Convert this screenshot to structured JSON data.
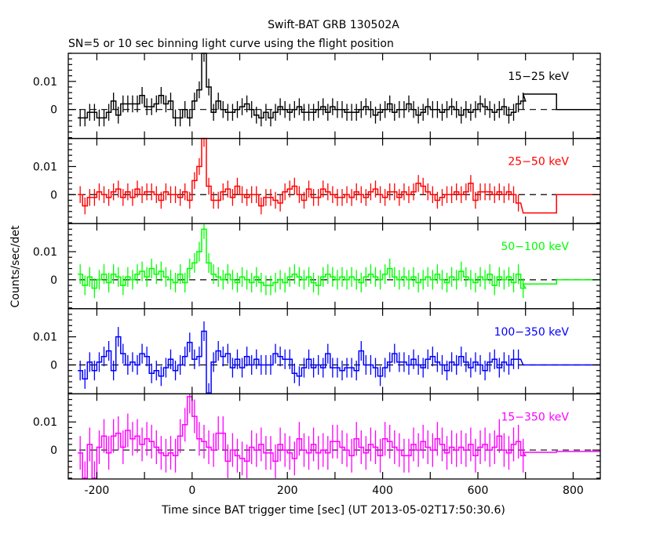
{
  "chart_data": {
    "type": "line",
    "title": "Swift-BAT GRB 130502A",
    "subtitle": "SN=5 or 10 sec binning light curve using the flight position",
    "xlabel": "Time since BAT trigger time [sec] (UT 2013-05-02T17:50:30.6)",
    "ylabel": "Counts/sec/det",
    "xlim": [
      -260,
      857
    ],
    "ylim": [
      -0.0103,
      0.02
    ],
    "x_ticks": [
      -200,
      0,
      200,
      400,
      600,
      800
    ],
    "y_ticks": [
      0,
      0.01
    ],
    "y_tick_labels": [
      "0",
      "0.01"
    ],
    "x_start": -240,
    "bin_width": 10,
    "panels": [
      {
        "name": "15−25 keV",
        "color": "#000000",
        "error": 0.003,
        "values": [
          -0.003,
          -0.003,
          -0.001,
          -0.001,
          -0.003,
          -0.003,
          -0.001,
          0.003,
          -0.002,
          0.002,
          0.002,
          0.002,
          0.002,
          0.005,
          0.001,
          0.001,
          0.002,
          0.005,
          0.002,
          0.003,
          -0.003,
          -0.003,
          0.0,
          -0.003,
          0.003,
          0.007,
          0.02,
          0.008,
          -0.001,
          0.003,
          0.0,
          -0.001,
          -0.001,
          0.0,
          0.001,
          0.002,
          0.0,
          -0.002,
          -0.003,
          -0.001,
          -0.003,
          -0.001,
          0.001,
          0.0,
          -0.001,
          0.0,
          0.001,
          -0.001,
          -0.001,
          -0.001,
          0.0,
          0.001,
          -0.001,
          0.001,
          0.0,
          0.0,
          -0.001,
          -0.001,
          -0.001,
          0.0,
          0.001,
          0.0,
          -0.002,
          -0.001,
          0.0,
          0.002,
          -0.001,
          0.0,
          0.0,
          0.002,
          0.0,
          -0.002,
          -0.001,
          0.001,
          0.0,
          0.0,
          -0.001,
          0.0,
          0.001,
          0.0,
          -0.002,
          0.0,
          -0.001,
          0.0,
          0.002,
          0.001,
          0.0,
          -0.001,
          0.0,
          0.001,
          -0.002,
          -0.001,
          0.002,
          0.003
        ],
        "tail": [
          {
            "from": 695,
            "to": 765,
            "value": 0.0055
          },
          {
            "from": 765,
            "to": 857,
            "value": 0.0
          }
        ]
      },
      {
        "name": "25−50 keV",
        "color": "#ff0000",
        "error": 0.003,
        "values": [
          0.0,
          -0.004,
          -0.001,
          -0.001,
          0.001,
          0.0,
          -0.001,
          0.001,
          0.002,
          -0.001,
          0.001,
          -0.001,
          0.002,
          0.0,
          0.001,
          0.001,
          0.0,
          -0.002,
          0.001,
          0.0,
          0.0,
          -0.001,
          0.001,
          -0.002,
          0.005,
          0.01,
          0.02,
          0.003,
          -0.002,
          -0.002,
          0.001,
          0.002,
          -0.001,
          0.003,
          0.0,
          -0.001,
          0.0,
          0.0,
          -0.004,
          -0.001,
          -0.001,
          -0.002,
          -0.003,
          0.001,
          0.002,
          0.003,
          0.0,
          -0.002,
          0.002,
          -0.001,
          -0.001,
          0.002,
          0.001,
          0.0,
          -0.001,
          -0.001,
          0.0,
          -0.001,
          0.001,
          0.0,
          -0.001,
          0.001,
          0.002,
          0.0,
          -0.001,
          0.001,
          0.001,
          -0.001,
          0.001,
          0.0,
          0.001,
          0.004,
          0.003,
          0.001,
          0.0,
          -0.002,
          -0.001,
          0.0,
          0.0,
          0.001,
          0.0,
          0.001,
          0.004,
          -0.002,
          0.001,
          0.001,
          0.001,
          0.0,
          0.001,
          0.0,
          0.001,
          0.0,
          -0.003
        ],
        "tail": [
          {
            "from": 695,
            "to": 765,
            "value": -0.0065
          },
          {
            "from": 765,
            "to": 857,
            "value": 0.0
          }
        ]
      },
      {
        "name": "50−100 keV",
        "color": "#00ff00",
        "error": 0.0035,
        "values": [
          0.002,
          -0.002,
          0.001,
          -0.003,
          0.0,
          0.002,
          -0.001,
          0.002,
          0.001,
          -0.002,
          0.001,
          0.0,
          0.002,
          0.003,
          0.001,
          0.004,
          0.002,
          0.003,
          0.001,
          0.0,
          -0.001,
          0.002,
          -0.001,
          0.004,
          0.006,
          0.01,
          0.018,
          0.006,
          0.002,
          0.001,
          0.0,
          0.002,
          0.0,
          -0.001,
          0.001,
          0.0,
          -0.001,
          0.001,
          -0.001,
          -0.002,
          -0.002,
          -0.001,
          0.0,
          -0.001,
          0.001,
          0.002,
          0.001,
          0.0,
          0.001,
          -0.001,
          -0.002,
          0.001,
          0.002,
          0.001,
          0.0,
          0.001,
          0.0,
          0.001,
          0.0,
          -0.001,
          0.001,
          0.002,
          0.001,
          0.0,
          0.002,
          0.004,
          0.001,
          0.0,
          0.001,
          0.0,
          0.001,
          -0.001,
          0.0,
          0.001,
          0.0,
          0.002,
          0.0,
          -0.001,
          0.001,
          0.0,
          0.003,
          0.001,
          0.0,
          -0.001,
          0.001,
          0.0,
          0.002,
          -0.002,
          0.001,
          0.0,
          0.001,
          -0.001,
          0.002,
          -0.003
        ],
        "tail": [
          {
            "from": 695,
            "to": 765,
            "value": -0.0015
          },
          {
            "from": 765,
            "to": 857,
            "value": 0.0
          }
        ]
      },
      {
        "name": "100−350 keV",
        "color": "#0000ff",
        "error": 0.0035,
        "values": [
          -0.002,
          -0.005,
          0.001,
          -0.002,
          0.001,
          0.003,
          0.005,
          -0.002,
          0.01,
          0.004,
          0.0,
          0.001,
          0.0,
          0.004,
          0.003,
          -0.003,
          -0.002,
          -0.004,
          -0.001,
          0.002,
          -0.002,
          0.0,
          0.003,
          0.008,
          0.002,
          0.003,
          0.012,
          -0.01,
          0.001,
          0.005,
          0.003,
          0.004,
          -0.001,
          0.002,
          -0.001,
          0.003,
          0.0,
          0.002,
          0.0,
          0.0,
          0.0,
          0.004,
          0.003,
          0.002,
          0.002,
          -0.003,
          -0.004,
          -0.001,
          0.002,
          -0.001,
          0.0,
          -0.001,
          0.004,
          -0.001,
          -0.001,
          -0.002,
          -0.001,
          -0.001,
          -0.002,
          0.005,
          0.0,
          0.0,
          -0.001,
          -0.004,
          -0.001,
          0.001,
          0.004,
          0.001,
          0.001,
          0.0,
          0.002,
          0.0,
          -0.001,
          0.002,
          0.003,
          0.001,
          0.0,
          -0.002,
          0.001,
          0.0,
          0.003,
          0.001,
          -0.001,
          0.001,
          0.0,
          -0.002,
          0.001,
          0.002,
          -0.001,
          0.001,
          0.0,
          0.002,
          0.002
        ],
        "tail": [
          {
            "from": 695,
            "to": 765,
            "value": 0.0
          },
          {
            "from": 765,
            "to": 857,
            "value": 0.0
          }
        ]
      },
      {
        "name": "15−350 keV",
        "color": "#ff00ff",
        "error": 0.006,
        "values": [
          -0.001,
          -0.01,
          0.002,
          -0.01,
          0.001,
          0.005,
          -0.001,
          0.005,
          0.006,
          0.001,
          0.007,
          0.004,
          0.005,
          0.002,
          0.004,
          0.003,
          0.001,
          -0.001,
          -0.002,
          -0.001,
          -0.002,
          0.005,
          0.009,
          0.019,
          0.012,
          0.004,
          0.003,
          0.001,
          0.0,
          0.006,
          0.006,
          -0.004,
          0.0,
          -0.002,
          -0.003,
          -0.004,
          0.001,
          0.0,
          0.002,
          -0.001,
          -0.001,
          -0.004,
          0.002,
          0.0,
          -0.001,
          -0.003,
          0.004,
          0.0,
          -0.001,
          0.002,
          -0.001,
          0.0,
          -0.001,
          0.003,
          0.003,
          0.001,
          0.0,
          -0.002,
          0.004,
          0.001,
          -0.001,
          0.002,
          0.001,
          -0.002,
          0.004,
          0.003,
          0.001,
          0.0,
          -0.002,
          -0.002,
          0.002,
          0.0,
          0.003,
          0.001,
          0.0,
          0.004,
          0.002,
          -0.001,
          0.001,
          0.0,
          0.001,
          0.0,
          0.002,
          -0.002,
          0.001,
          0.002,
          0.0,
          0.001,
          0.005,
          0.0,
          -0.001,
          0.002,
          0.003,
          -0.002
        ],
        "tail": [
          {
            "from": 695,
            "to": 765,
            "value": -0.0008
          },
          {
            "from": 765,
            "to": 857,
            "value": -0.0005
          }
        ]
      }
    ]
  }
}
